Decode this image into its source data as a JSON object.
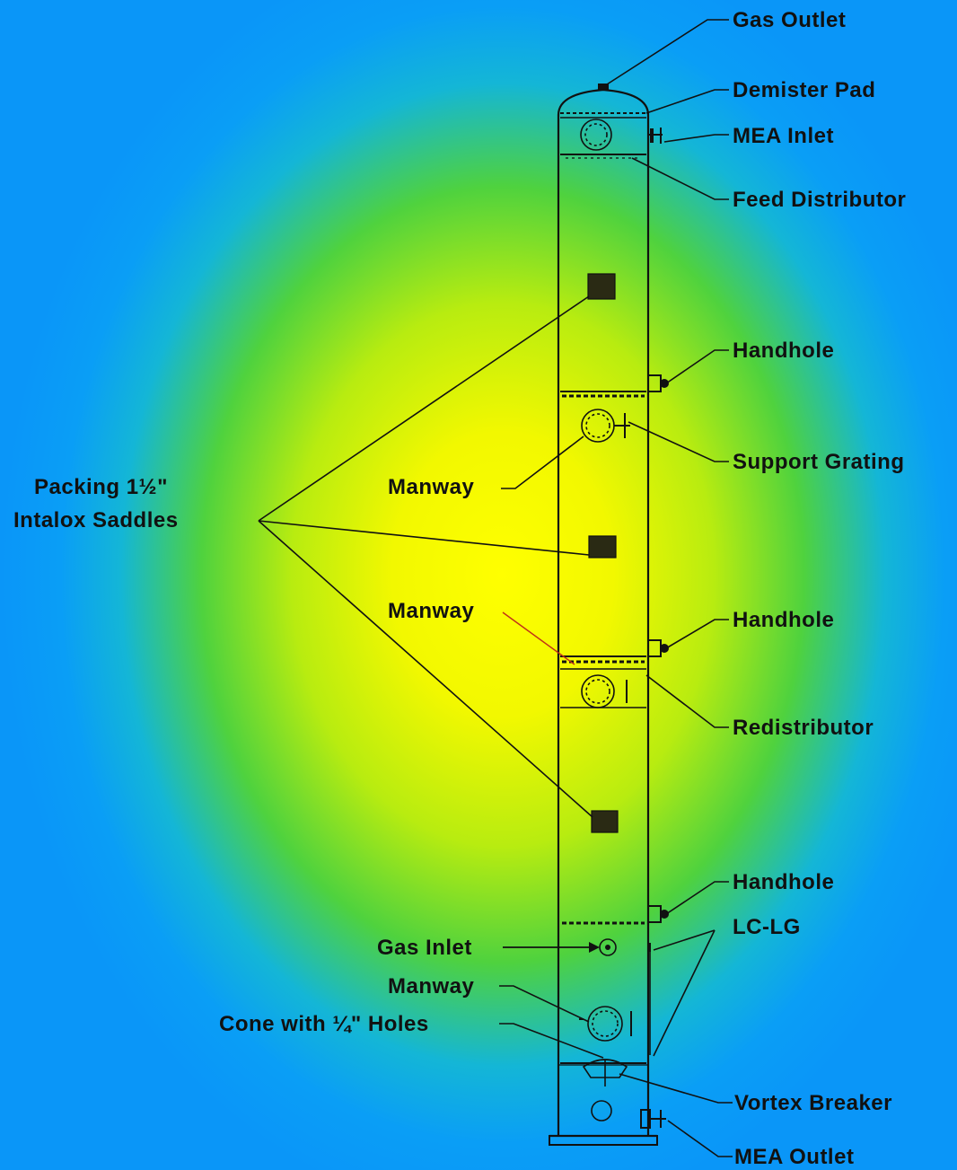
{
  "diagram": {
    "labels": {
      "gas_outlet": "Gas Outlet",
      "demister_pad": "Demister Pad",
      "mea_inlet": "MEA Inlet",
      "feed_distributor": "Feed Distributor",
      "handhole_1": "Handhole",
      "support_grating": "Support Grating",
      "packing_line1": "Packing 1½\"",
      "packing_line2": "Intalox Saddles",
      "manway_1": "Manway",
      "manway_2": "Manway",
      "handhole_2": "Handhole",
      "redistributor": "Redistributor",
      "handhole_3": "Handhole",
      "lc_lg": "LC-LG",
      "gas_inlet": "Gas Inlet",
      "manway_3": "Manway",
      "cone_holes": "Cone with ¼\" Holes",
      "vortex_breaker": "Vortex Breaker",
      "mea_outlet": "MEA Outlet"
    },
    "colors": {
      "center": "#ffff00",
      "edge": "#0a96f8",
      "ink": "#111111"
    }
  }
}
